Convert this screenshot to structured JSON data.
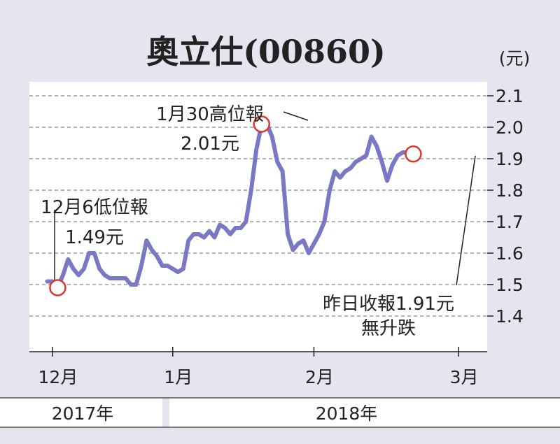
{
  "chart_data": {
    "type": "line",
    "title": "奧立仕(00860)",
    "unit": "(元)",
    "y_ticks": [
      "2.1",
      "2.0",
      "1.9",
      "1.8",
      "1.7",
      "1.6",
      "1.5",
      "1.4"
    ],
    "ylim": [
      1.4,
      2.1
    ],
    "grid": true,
    "x_ticks": [
      "12月",
      "1月",
      "2月",
      "3月"
    ],
    "years": [
      "2017年",
      "2018年"
    ],
    "series": [
      {
        "color": "#7a78c4",
        "x": [
          0,
          3,
          6,
          9,
          12,
          15,
          18,
          21,
          24,
          27,
          30,
          33,
          36,
          39,
          42,
          45,
          48,
          51,
          54,
          57,
          60,
          63,
          66,
          69,
          72,
          75,
          78,
          81,
          84,
          87,
          90,
          93,
          96,
          99,
          102,
          105,
          108
        ],
        "y": [
          1.51,
          1.51,
          1.49,
          1.53,
          1.58,
          1.55,
          1.53,
          1.55,
          1.6,
          1.6,
          1.55,
          1.53,
          1.52,
          1.52,
          1.52,
          1.52,
          1.5,
          1.5,
          1.56,
          1.64,
          1.61,
          1.59,
          1.56,
          1.56,
          1.55,
          1.54,
          1.55,
          1.64,
          1.66,
          1.66,
          1.65,
          1.67,
          1.65,
          1.69,
          1.68,
          1.66,
          1.68
        ]
      },
      {
        "color": "#7a78c4",
        "x": [
          108,
          111,
          114,
          117,
          120,
          123,
          126,
          129,
          132,
          135,
          138,
          141,
          144,
          147,
          150,
          153,
          156,
          159,
          162,
          165,
          168,
          171,
          174,
          177,
          180,
          183,
          186,
          189,
          192,
          195,
          198,
          201,
          204,
          207,
          210
        ],
        "y": [
          1.68,
          1.68,
          1.7,
          1.8,
          1.93,
          2.01,
          2.01,
          1.97,
          1.89,
          1.86,
          1.66,
          1.61,
          1.63,
          1.64,
          1.6,
          1.63,
          1.66,
          1.7,
          1.8,
          1.86,
          1.84,
          1.86,
          1.87,
          1.89,
          1.9,
          1.91,
          1.97,
          1.94,
          1.89,
          1.83,
          1.88,
          1.91,
          1.92,
          1.92,
          1.91
        ]
      }
    ],
    "x_tick_positions": [
      3,
      72,
      153,
      236
    ],
    "xlim": [
      -3,
      250
    ],
    "annotations": [
      {
        "lines": [
          "1月30高位報",
          "2.01元"
        ],
        "x": 123,
        "y": 2.01
      },
      {
        "lines": [
          "12月6低位報",
          "1.49元"
        ],
        "x": 6,
        "y": 1.49
      },
      {
        "lines": [
          "昨日收報1.91元",
          "無升跌"
        ],
        "x": 210,
        "y": 1.915
      }
    ]
  }
}
